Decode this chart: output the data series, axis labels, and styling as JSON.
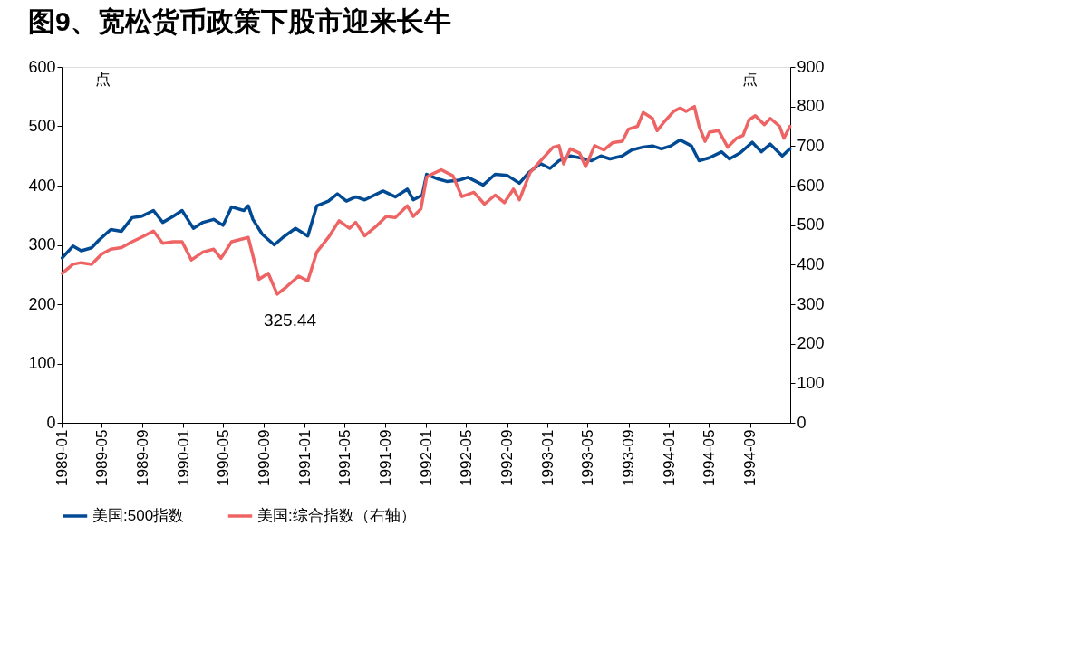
{
  "chart_data": {
    "type": "line",
    "title": "图9、宽松货币政策下股市迎来长牛",
    "ylabel": "点",
    "y2label": "点",
    "annotations": [
      "325.44"
    ],
    "xlim": [
      "1989-01-01",
      "1994-12-31"
    ],
    "xticks": [
      "1989-01",
      "1989-05",
      "1989-09",
      "1990-01",
      "1990-05",
      "1990-09",
      "1991-01",
      "1991-05",
      "1991-09",
      "1992-01",
      "1992-05",
      "1992-09",
      "1993-01",
      "1993-05",
      "1993-09",
      "1994-01",
      "1994-05",
      "1994-09"
    ],
    "ylim": [
      0,
      600
    ],
    "yticks": [
      0,
      100,
      200,
      300,
      400,
      500,
      600
    ],
    "y2lim": [
      0,
      900
    ],
    "y2ticks": [
      0,
      100,
      200,
      300,
      400,
      500,
      600,
      700,
      800,
      900
    ],
    "legend": "bottom",
    "series": [
      {
        "name": "美国:500指数",
        "color": "#004a93",
        "x": [
          "1989-01-03",
          "1989-02-04",
          "1989-03-01",
          "1989-04-01",
          "1989-04-23",
          "1989-05-29",
          "1989-06-30",
          "1989-08-01",
          "1989-08-28",
          "1989-10-04",
          "1989-11-01",
          "1989-12-02",
          "1989-12-29",
          "1990-02-01",
          "1990-03-02",
          "1990-04-03",
          "1990-05-01",
          "1990-05-27",
          "1990-07-03",
          "1990-07-16",
          "1990-07-30",
          "1990-08-27",
          "1990-10-02",
          "1990-10-29",
          "1990-12-05",
          "1991-01-11",
          "1991-02-07",
          "1991-03-14",
          "1991-04-10",
          "1991-05-07",
          "1991-06-04",
          "1991-07-01",
          "1991-08-07",
          "1991-08-25",
          "1991-10-01",
          "1991-11-06",
          "1991-11-24",
          "1991-12-21",
          "1992-01-03",
          "1992-02-07",
          "1992-03-04",
          "1992-04-09",
          "1992-05-06",
          "1992-06-21",
          "1992-07-27",
          "1992-09-02",
          "1992-10-08",
          "1992-11-05",
          "1992-12-11",
          "1993-01-08",
          "1993-02-04",
          "1993-03-10",
          "1993-04-07",
          "1993-05-13",
          "1993-06-10",
          "1993-07-07",
          "1993-08-13",
          "1993-09-10",
          "1993-10-15",
          "1993-11-12",
          "1993-12-09",
          "1994-01-06",
          "1994-02-03",
          "1994-03-09",
          "1994-04-01",
          "1994-05-02",
          "1994-06-08",
          "1994-07-01",
          "1994-08-02",
          "1994-09-08",
          "1994-10-05",
          "1994-11-01",
          "1994-12-07",
          "1994-12-30"
        ],
        "values": [
          278,
          298,
          290,
          295,
          308,
          326,
          323,
          346,
          348,
          358,
          338,
          348,
          358,
          328,
          338,
          343,
          333,
          364,
          358,
          366,
          343,
          318,
          300,
          313,
          328,
          315,
          366,
          374,
          386,
          374,
          381,
          376,
          386,
          391,
          381,
          394,
          376,
          384,
          419,
          411,
          407,
          409,
          414,
          401,
          419,
          417,
          404,
          422,
          437,
          429,
          442,
          450,
          447,
          442,
          450,
          445,
          450,
          460,
          465,
          467,
          462,
          467,
          477,
          467,
          442,
          447,
          457,
          445,
          455,
          473,
          457,
          470,
          450,
          462
        ]
      },
      {
        "name": "美国:综合指数（右轴）",
        "color": "#ee6464",
        "axis": "y2",
        "x": [
          "1989-01-03",
          "1989-02-04",
          "1989-03-01",
          "1989-04-01",
          "1989-05-02",
          "1989-05-29",
          "1989-06-30",
          "1989-08-01",
          "1989-08-28",
          "1989-10-04",
          "1989-11-01",
          "1989-12-02",
          "1989-12-29",
          "1990-01-26",
          "1990-03-02",
          "1990-04-03",
          "1990-04-25",
          "1990-05-27",
          "1990-07-03",
          "1990-07-16",
          "1990-08-17",
          "1990-09-14",
          "1990-10-11",
          "1990-11-08",
          "1990-12-14",
          "1991-01-11",
          "1991-02-07",
          "1991-03-14",
          "1991-04-15",
          "1991-05-16",
          "1991-06-04",
          "1991-07-01",
          "1991-08-07",
          "1991-09-04",
          "1991-10-01",
          "1991-11-06",
          "1991-11-24",
          "1991-12-17",
          "1992-01-03",
          "1992-01-19",
          "1992-02-16",
          "1992-03-22",
          "1992-04-18",
          "1992-05-24",
          "1992-06-25",
          "1992-07-27",
          "1992-08-24",
          "1992-09-20",
          "1992-10-08",
          "1992-11-09",
          "1992-12-11",
          "1993-01-17",
          "1993-02-04",
          "1993-02-18",
          "1993-03-10",
          "1993-04-07",
          "1993-04-25",
          "1993-05-22",
          "1993-06-19",
          "1993-07-16",
          "1993-08-13",
          "1993-09-01",
          "1993-09-28",
          "1993-10-15",
          "1993-11-12",
          "1993-11-26",
          "1993-12-18",
          "1994-01-15",
          "1994-02-03",
          "1994-02-21",
          "1994-03-18",
          "1994-04-01",
          "1994-04-19",
          "1994-05-02",
          "1994-05-30",
          "1994-06-26",
          "1994-07-23",
          "1994-08-11",
          "1994-08-29",
          "1994-09-17",
          "1994-10-14",
          "1994-11-01",
          "1994-11-29",
          "1994-12-12",
          "1994-12-30"
        ],
        "values": [
          378,
          401,
          405,
          401,
          427,
          439,
          443,
          458,
          469,
          485,
          454,
          458,
          458,
          412,
          432,
          439,
          416,
          458,
          466,
          469,
          363,
          378,
          325.44,
          344,
          371,
          359,
          432,
          469,
          511,
          492,
          507,
          473,
          499,
          522,
          519,
          549,
          522,
          541,
          621,
          629,
          640,
          625,
          572,
          583,
          553,
          576,
          557,
          591,
          564,
          633,
          663,
          697,
          701,
          655,
          693,
          682,
          648,
          701,
          690,
          709,
          712,
          743,
          750,
          785,
          770,
          739,
          762,
          788,
          796,
          788,
          800,
          750,
          712,
          735,
          739,
          697,
          720,
          727,
          766,
          777,
          754,
          770,
          750,
          720,
          750
        ]
      }
    ]
  }
}
